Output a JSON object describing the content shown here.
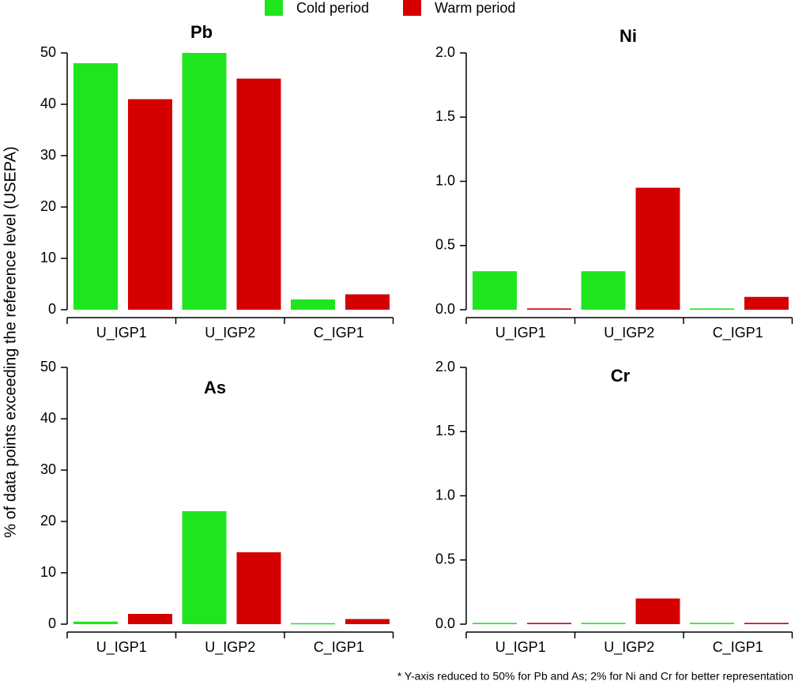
{
  "chart_data": [
    {
      "type": "bar",
      "title": "Pb",
      "categories": [
        "U_IGP1",
        "U_IGP2",
        "C_IGP1"
      ],
      "series": [
        {
          "name": "Cold period",
          "color": "#1fe51f",
          "values": [
            48,
            50,
            2
          ]
        },
        {
          "name": "Warm period",
          "color": "#d40000",
          "values": [
            41,
            45,
            3
          ]
        }
      ],
      "ylim": [
        0,
        50
      ],
      "yticks": [
        0,
        10,
        20,
        30,
        40,
        50
      ]
    },
    {
      "type": "bar",
      "title": "Ni",
      "categories": [
        "U_IGP1",
        "U_IGP2",
        "C_IGP1"
      ],
      "series": [
        {
          "color": "#1fe51f",
          "values": [
            0.3,
            0.3,
            0.01
          ]
        },
        {
          "color": "#d40000",
          "values": [
            0.01,
            0.95,
            0.1
          ]
        }
      ],
      "ylim": [
        0,
        2
      ],
      "yticks": [
        {
          "value": 0,
          "label": "0.0"
        },
        0.5,
        {
          "value": 1,
          "label": "1.0"
        },
        1.5,
        {
          "value": 2,
          "label": "2.0"
        }
      ]
    },
    {
      "type": "bar",
      "title": "As",
      "categories": [
        "U_IGP1",
        "U_IGP2",
        "C_IGP1"
      ],
      "series": [
        {
          "color": "#1fe51f",
          "values": [
            0.5,
            22,
            0.2
          ]
        },
        {
          "color": "#d40000",
          "values": [
            2,
            14,
            1
          ]
        }
      ],
      "ylim": [
        0,
        50
      ],
      "yticks": [
        0,
        10,
        20,
        30,
        40,
        50
      ]
    },
    {
      "type": "bar",
      "title": "Cr",
      "categories": [
        "U_IGP1",
        "U_IGP2",
        "C_IGP1"
      ],
      "series": [
        {
          "color": "#1fe51f",
          "values": [
            0.01,
            0.01,
            0.01
          ]
        },
        {
          "color": "#d40000",
          "values": [
            0.01,
            0.2,
            0.01
          ]
        }
      ],
      "ylim": [
        0,
        2
      ],
      "yticks": [
        {
          "value": 0,
          "label": "0.0"
        },
        0.5,
        {
          "value": 1,
          "label": "1.0"
        },
        1.5,
        {
          "value": 2,
          "label": "2.0"
        }
      ]
    }
  ],
  "ylabel": "% of data points exceeding the reference level (USEPA)",
  "footnote": "* Y-axis reduced to 50% for Pb and As; 2% for Ni and Cr for better representation"
}
